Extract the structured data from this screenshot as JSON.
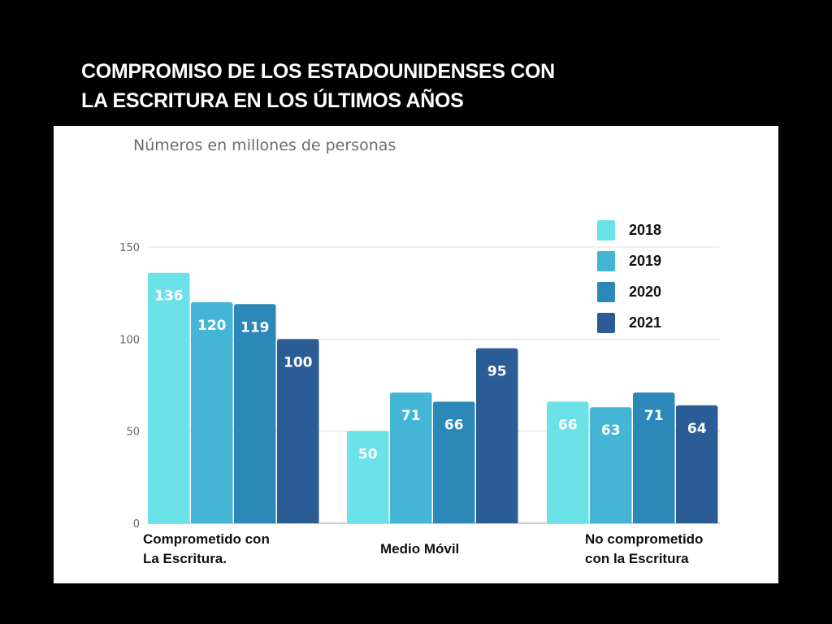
{
  "header": {
    "title_line1": "COMPROMISO DE LOS ESTADOUNIDENSES CON",
    "title_line2": "LA ESCRITURA EN LOS  ÚLTIMOS AÑOS"
  },
  "chart_data": {
    "type": "bar",
    "title": "COMPROMISO DE LOS ESTADOUNIDENSES CON LA ESCRITURA EN LOS ÚLTIMOS AÑOS",
    "subtitle": "Números en millones de personas",
    "categories": [
      "Comprometido con La Escritura.",
      "Medio Móvil",
      "No comprometido con la Escritura"
    ],
    "category_lines": [
      [
        "Comprometido con",
        "La Escritura."
      ],
      [
        "Medio Móvil"
      ],
      [
        "No comprometido",
        "con la Escritura"
      ]
    ],
    "series": [
      {
        "name": "2018",
        "color": "#6ae2e8",
        "values": [
          136,
          50,
          66
        ]
      },
      {
        "name": "2019",
        "color": "#45b5d6",
        "values": [
          120,
          71,
          63
        ]
      },
      {
        "name": "2020",
        "color": "#2b88b9",
        "values": [
          119,
          66,
          71
        ]
      },
      {
        "name": "2021",
        "color": "#2c5c96",
        "values": [
          100,
          95,
          64
        ]
      }
    ],
    "yticks": [
      0,
      50,
      100,
      150
    ],
    "ylim": [
      0,
      150
    ],
    "xlabel": "",
    "ylabel": "",
    "grid": true,
    "legend_position": "top-right",
    "data_labels": true
  }
}
